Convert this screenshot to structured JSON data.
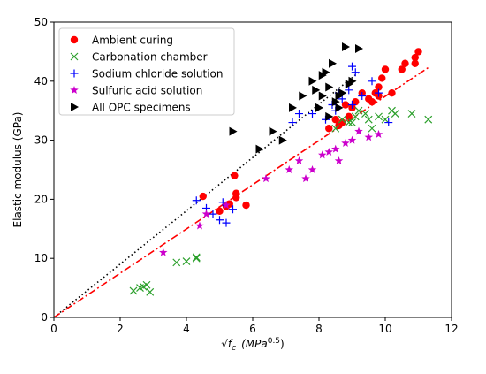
{
  "chart_data": {
    "type": "scatter",
    "title": "",
    "xlabel_parts": {
      "radical": "√",
      "base": "f",
      "sub": "c",
      "unit_open": "(MPa",
      "unit_exp": "0.5",
      "unit_close": ")"
    },
    "ylabel": "Elastic modulus (GPa)",
    "xlim": [
      0,
      12
    ],
    "ylim": [
      0,
      50
    ],
    "xticks": [
      "0",
      "2",
      "4",
      "6",
      "8",
      "10",
      "12"
    ],
    "yticks": [
      "0",
      "10",
      "20",
      "30",
      "40",
      "50"
    ],
    "xtick_values": [
      0,
      2,
      4,
      6,
      8,
      10,
      12
    ],
    "ytick_values": [
      0,
      10,
      20,
      30,
      40,
      50
    ],
    "grid": false,
    "legend_position": "top-left",
    "series": [
      {
        "name": "Ambient curing",
        "marker": "circle",
        "color": "#ff0000",
        "points": [
          [
            4.5,
            20.5
          ],
          [
            5.0,
            18.0
          ],
          [
            5.2,
            18.8
          ],
          [
            5.3,
            19.2
          ],
          [
            5.5,
            21.0
          ],
          [
            5.45,
            24.0
          ],
          [
            5.8,
            19.0
          ],
          [
            5.5,
            20.3
          ],
          [
            8.6,
            32.5
          ],
          [
            8.7,
            33.0
          ],
          [
            8.9,
            34.0
          ],
          [
            8.8,
            36.0
          ],
          [
            9.0,
            35.5
          ],
          [
            9.1,
            36.5
          ],
          [
            9.3,
            38.0
          ],
          [
            9.5,
            37.0
          ],
          [
            9.6,
            36.5
          ],
          [
            9.7,
            38.0
          ],
          [
            9.8,
            39.0
          ],
          [
            9.9,
            40.5
          ],
          [
            9.8,
            37.5
          ],
          [
            10.0,
            42.0
          ],
          [
            10.2,
            38.0
          ],
          [
            10.5,
            42.0
          ],
          [
            10.6,
            43.0
          ],
          [
            10.9,
            44.0
          ],
          [
            11.0,
            45.0
          ],
          [
            10.9,
            43.0
          ],
          [
            8.5,
            33.5
          ],
          [
            8.3,
            32.0
          ]
        ]
      },
      {
        "name": "Carbonation chamber",
        "marker": "x",
        "color": "#2ca02c",
        "points": [
          [
            2.4,
            4.5
          ],
          [
            2.6,
            5.0
          ],
          [
            2.7,
            5.2
          ],
          [
            2.9,
            4.3
          ],
          [
            2.8,
            5.5
          ],
          [
            3.7,
            9.3
          ],
          [
            4.0,
            9.5
          ],
          [
            4.3,
            10.0
          ],
          [
            4.3,
            10.2
          ],
          [
            8.5,
            32.0
          ],
          [
            8.9,
            33.0
          ],
          [
            9.1,
            34.0
          ],
          [
            9.2,
            35.0
          ],
          [
            9.5,
            33.5
          ],
          [
            9.8,
            34.0
          ],
          [
            10.0,
            33.5
          ],
          [
            10.2,
            35.0
          ],
          [
            10.3,
            34.5
          ],
          [
            10.8,
            34.5
          ],
          [
            11.3,
            33.5
          ],
          [
            9.6,
            32.0
          ],
          [
            8.7,
            33.5
          ],
          [
            9.0,
            33.0
          ],
          [
            9.4,
            34.5
          ]
        ]
      },
      {
        "name": "Sodium chloride solution",
        "marker": "plus",
        "color": "#0000ff",
        "points": [
          [
            4.3,
            19.8
          ],
          [
            4.6,
            18.5
          ],
          [
            4.8,
            17.5
          ],
          [
            5.0,
            16.5
          ],
          [
            5.2,
            16.0
          ],
          [
            5.4,
            18.3
          ],
          [
            5.1,
            19.5
          ],
          [
            7.2,
            33.0
          ],
          [
            7.4,
            34.5
          ],
          [
            7.8,
            34.5
          ],
          [
            8.2,
            33.5
          ],
          [
            8.4,
            36.0
          ],
          [
            8.6,
            38.0
          ],
          [
            8.7,
            37.0
          ],
          [
            8.9,
            38.5
          ],
          [
            9.0,
            42.5
          ],
          [
            9.1,
            41.5
          ],
          [
            9.3,
            37.5
          ],
          [
            9.6,
            40.0
          ],
          [
            9.8,
            38.0
          ],
          [
            10.1,
            33.0
          ],
          [
            8.5,
            35.0
          ],
          [
            9.0,
            36.0
          ]
        ]
      },
      {
        "name": "Sulfuric acid solution",
        "marker": "star",
        "color": "#cc00cc",
        "points": [
          [
            3.3,
            11.0
          ],
          [
            4.4,
            15.5
          ],
          [
            4.6,
            17.5
          ],
          [
            5.2,
            19.0
          ],
          [
            6.4,
            23.5
          ],
          [
            7.1,
            25.0
          ],
          [
            7.4,
            26.5
          ],
          [
            7.6,
            23.5
          ],
          [
            7.8,
            25.0
          ],
          [
            8.1,
            27.5
          ],
          [
            8.3,
            28.0
          ],
          [
            8.6,
            26.5
          ],
          [
            8.8,
            29.5
          ],
          [
            9.0,
            30.0
          ],
          [
            9.2,
            31.5
          ],
          [
            9.5,
            30.5
          ],
          [
            9.8,
            31.0
          ],
          [
            8.5,
            28.5
          ]
        ]
      },
      {
        "name": "All OPC specimens",
        "marker": "triangle-right",
        "color": "#000000",
        "points": [
          [
            5.4,
            31.5
          ],
          [
            6.2,
            28.5
          ],
          [
            6.6,
            31.5
          ],
          [
            6.9,
            30.0
          ],
          [
            7.2,
            35.5
          ],
          [
            7.5,
            37.5
          ],
          [
            7.8,
            40.0
          ],
          [
            7.9,
            38.5
          ],
          [
            8.0,
            35.5
          ],
          [
            8.1,
            41.0
          ],
          [
            8.2,
            41.5
          ],
          [
            8.1,
            37.5
          ],
          [
            8.3,
            39.0
          ],
          [
            8.4,
            43.0
          ],
          [
            8.5,
            36.5
          ],
          [
            8.6,
            37.5
          ],
          [
            8.7,
            38.0
          ],
          [
            8.8,
            45.8
          ],
          [
            8.9,
            39.5
          ],
          [
            9.0,
            40.0
          ],
          [
            9.2,
            45.5
          ],
          [
            8.3,
            34.0
          ],
          [
            8.6,
            35.5
          ]
        ]
      }
    ],
    "fit_lines": [
      {
        "name": "OPC fit",
        "style": "dotted",
        "color": "#000000",
        "x": [
          0,
          9.2
        ],
        "y": [
          0,
          41.5
        ]
      },
      {
        "name": "Alkali-activated fit",
        "style": "dashdot",
        "color": "#ff0000",
        "x": [
          0,
          11.3
        ],
        "y": [
          0,
          42.3
        ]
      }
    ]
  }
}
